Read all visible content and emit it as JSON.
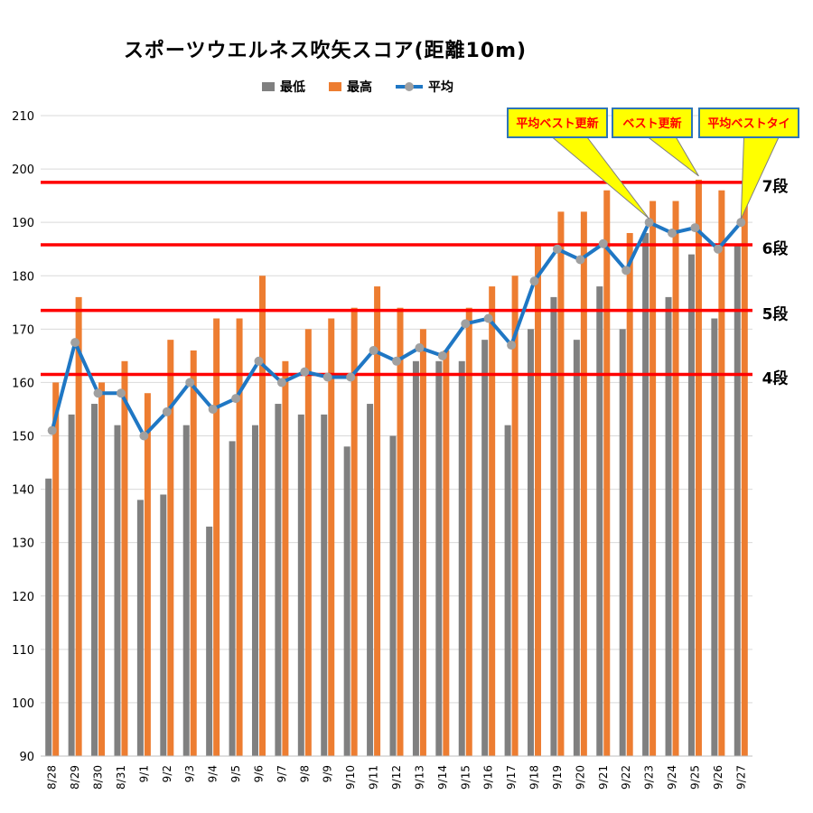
{
  "chart_data": {
    "type": "bar",
    "title": "スポーツウエルネス吹矢スコア(距離10m)",
    "categories": [
      "8/28",
      "8/29",
      "8/30",
      "8/31",
      "9/1",
      "9/2",
      "9/3",
      "9/4",
      "9/5",
      "9/6",
      "9/7",
      "9/8",
      "9/9",
      "9/10",
      "9/11",
      "9/12",
      "9/13",
      "9/14",
      "9/15",
      "9/16",
      "9/17",
      "9/18",
      "9/19",
      "9/20",
      "9/21",
      "9/22",
      "9/23",
      "9/24",
      "9/25",
      "9/26",
      "9/27"
    ],
    "series": [
      {
        "name": "最低",
        "type": "bar",
        "color": "#808080",
        "values": [
          142,
          154,
          156,
          152,
          138,
          139,
          152,
          133,
          149,
          152,
          156,
          154,
          154,
          148,
          156,
          150,
          164,
          164,
          164,
          168,
          152,
          170,
          176,
          168,
          178,
          170,
          188,
          176,
          184,
          172,
          186
        ]
      },
      {
        "name": "最高",
        "type": "bar",
        "color": "#ED7D31",
        "values": [
          160,
          176,
          160,
          164,
          158,
          168,
          166,
          172,
          172,
          180,
          164,
          170,
          172,
          174,
          178,
          174,
          170,
          166,
          174,
          178,
          180,
          186,
          192,
          192,
          196,
          188,
          194,
          194,
          198,
          196,
          194
        ]
      },
      {
        "name": "平均",
        "type": "line",
        "color": "#1F77C4",
        "marker_color": "#A0A0A0",
        "values": [
          151,
          167.5,
          158,
          158,
          150,
          154.5,
          160,
          155,
          157,
          164,
          160,
          162,
          161,
          161,
          166,
          164,
          166.5,
          165,
          171,
          172,
          167,
          179,
          185,
          183,
          186,
          181,
          190,
          188,
          189,
          185,
          190
        ]
      }
    ],
    "ylim": [
      90,
      210
    ],
    "yticks": [
      90,
      100,
      110,
      120,
      130,
      140,
      150,
      160,
      170,
      180,
      190,
      200,
      210
    ],
    "grid": true,
    "legend_position": "top",
    "thresholds": [
      {
        "label": "4段",
        "value": 161.5,
        "color": "#FF0000"
      },
      {
        "label": "5段",
        "value": 173.5,
        "color": "#FF0000"
      },
      {
        "label": "6段",
        "value": 185.8,
        "color": "#FF0000"
      },
      {
        "label": "7段",
        "value": 197.5,
        "color": "#FF0000"
      }
    ],
    "callouts": [
      {
        "text": "平均ベスト更新",
        "target_category": "9/23",
        "target_series": "平均"
      },
      {
        "text": "ベスト更新",
        "target_category": "9/25",
        "target_series": "最高"
      },
      {
        "text": "平均ベストタイ",
        "target_category": "9/27",
        "target_series": "平均"
      }
    ]
  }
}
